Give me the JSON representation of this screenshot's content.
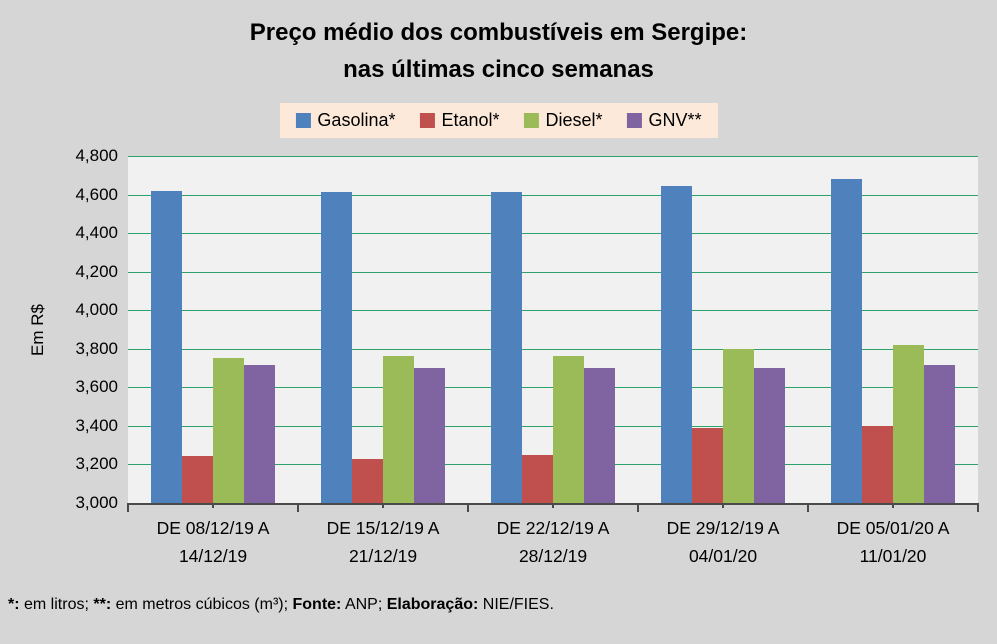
{
  "title": {
    "line1": "Preço médio dos combustíveis em Sergipe:",
    "line2": "nas últimas cinco semanas"
  },
  "colors": {
    "page_background": "#d6d6d6",
    "plot_background": "#f1f1f1",
    "gridline": "#2da36b",
    "axis": "#4a4a4a",
    "legend_background": "#fce9da",
    "gasolina": "#4f81bd",
    "etanol": "#c0504d",
    "diesel": "#9bbb59",
    "gnv": "#8064a2"
  },
  "footer": {
    "segments": [
      {
        "text": "*:",
        "bold": true
      },
      {
        "text": " em litros; ",
        "bold": false
      },
      {
        "text": "**:",
        "bold": true
      },
      {
        "text": " em metros cúbicos (m³); ",
        "bold": false
      },
      {
        "text": "Fonte:",
        "bold": true
      },
      {
        "text": " ANP; ",
        "bold": false
      },
      {
        "text": "Elaboração:",
        "bold": true
      },
      {
        "text": " NIE/FIES.",
        "bold": false
      }
    ]
  },
  "chart_data": {
    "type": "bar",
    "title": "Preço médio dos combustíveis em Sergipe: nas últimas cinco semanas",
    "xlabel": "",
    "ylabel": "Em R$",
    "ylim": [
      3000,
      4800
    ],
    "ytick_step": 200,
    "ytick_labels": [
      "4,800",
      "4,600",
      "4,400",
      "4,200",
      "4,000",
      "3,800",
      "3,600",
      "3,400",
      "3,200",
      "3,000"
    ],
    "grid": true,
    "legend_position": "top",
    "categories": [
      [
        "DE 08/12/19 A",
        "14/12/19"
      ],
      [
        "DE 15/12/19 A",
        "21/12/19"
      ],
      [
        "DE 22/12/19 A",
        "28/12/19"
      ],
      [
        "DE 29/12/19 A",
        "04/01/20"
      ],
      [
        "DE 05/01/20 A",
        "11/01/20"
      ]
    ],
    "series": [
      {
        "name": "Gasolina*",
        "color": "#4f81bd",
        "values": [
          4620,
          4615,
          4615,
          4645,
          4680
        ]
      },
      {
        "name": "Etanol*",
        "color": "#c0504d",
        "values": [
          3245,
          3230,
          3250,
          3390,
          3400
        ]
      },
      {
        "name": "Diesel*",
        "color": "#9bbb59",
        "values": [
          3750,
          3765,
          3760,
          3800,
          3820
        ]
      },
      {
        "name": "GNV**",
        "color": "#8064a2",
        "values": [
          3715,
          3700,
          3700,
          3700,
          3715
        ]
      }
    ]
  }
}
